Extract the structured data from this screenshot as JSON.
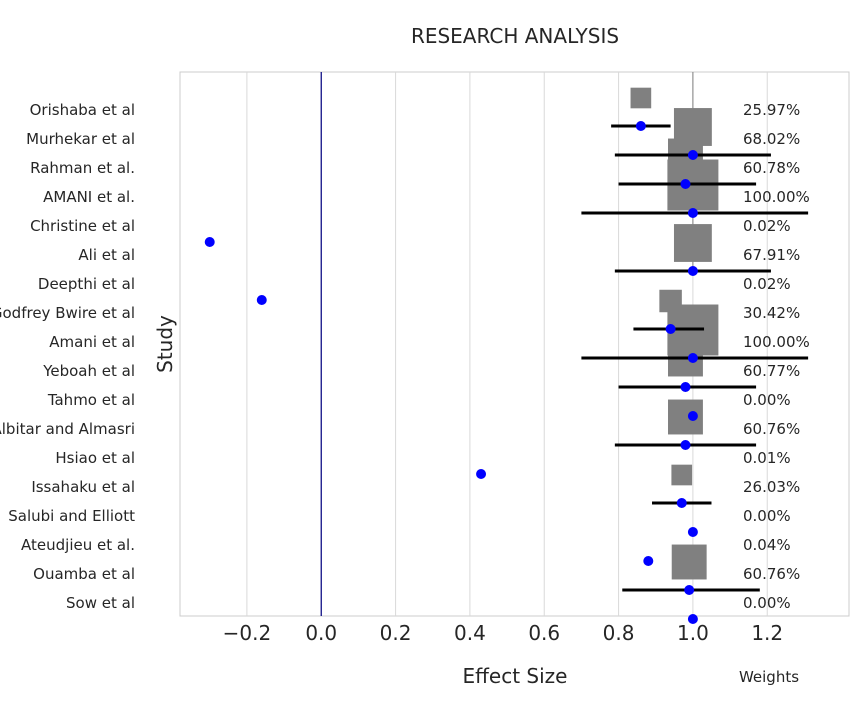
{
  "chart_data": {
    "type": "forest",
    "title": "RESEARCH ANALYSIS",
    "xlabel": "Effect Size",
    "ylabel": "Study",
    "weights_label": "Weights",
    "xlim": [
      -0.38,
      1.42
    ],
    "xticks": [
      -0.2,
      0.0,
      0.2,
      0.4,
      0.6,
      0.8,
      1.0,
      1.2
    ],
    "xtick_labels": [
      "−0.2",
      "0.0",
      "0.2",
      "0.4",
      "0.6",
      "0.8",
      "1.0",
      "1.2"
    ],
    "reference_lines": {
      "null": 0.0,
      "pooled": 1.0
    },
    "grid": "vertical",
    "colors": {
      "point": "#0000ff",
      "box": "#808080",
      "ci": "#000000",
      "null_line": "#000080",
      "pooled_line": "#808080",
      "grid": "#d9d9d9"
    },
    "studies": [
      {
        "name": "Orishaba et al",
        "effect": 0.86,
        "ci_low": 0.78,
        "ci_high": 0.94,
        "weight": 25.97,
        "weight_label": "25.97%"
      },
      {
        "name": "Murhekar et al",
        "effect": 1.0,
        "ci_low": 0.79,
        "ci_high": 1.21,
        "weight": 68.02,
        "weight_label": "68.02%"
      },
      {
        "name": "Rahman et al.",
        "effect": 0.98,
        "ci_low": 0.8,
        "ci_high": 1.17,
        "weight": 60.78,
        "weight_label": "60.78%"
      },
      {
        "name": "AMANI et al.",
        "effect": 1.0,
        "ci_low": 0.7,
        "ci_high": 1.31,
        "weight": 100.0,
        "weight_label": "100.00%"
      },
      {
        "name": "Christine et al",
        "effect": -0.3,
        "ci_low": null,
        "ci_high": null,
        "weight": 0.02,
        "weight_label": "0.02%"
      },
      {
        "name": "Ali et al",
        "effect": 1.0,
        "ci_low": 0.79,
        "ci_high": 1.21,
        "weight": 67.91,
        "weight_label": "67.91%"
      },
      {
        "name": "Deepthi et al",
        "effect": -0.16,
        "ci_low": null,
        "ci_high": null,
        "weight": 0.02,
        "weight_label": "0.02%"
      },
      {
        "name": "Godfrey Bwire et al",
        "effect": 0.94,
        "ci_low": 0.84,
        "ci_high": 1.03,
        "weight": 30.42,
        "weight_label": "30.42%"
      },
      {
        "name": "Amani et al",
        "effect": 1.0,
        "ci_low": 0.7,
        "ci_high": 1.31,
        "weight": 100.0,
        "weight_label": "100.00%"
      },
      {
        "name": "Yeboah et al",
        "effect": 0.98,
        "ci_low": 0.8,
        "ci_high": 1.17,
        "weight": 60.77,
        "weight_label": "60.77%"
      },
      {
        "name": "Tahmo et al",
        "effect": 1.0,
        "ci_low": null,
        "ci_high": null,
        "weight": 0.0,
        "weight_label": "0.00%"
      },
      {
        "name": "Albitar and Almasri",
        "effect": 0.98,
        "ci_low": 0.79,
        "ci_high": 1.17,
        "weight": 60.76,
        "weight_label": "60.76%"
      },
      {
        "name": "Hsiao et al",
        "effect": 0.43,
        "ci_low": null,
        "ci_high": null,
        "weight": 0.01,
        "weight_label": "0.01%"
      },
      {
        "name": "Issahaku et al",
        "effect": 0.97,
        "ci_low": 0.89,
        "ci_high": 1.05,
        "weight": 26.03,
        "weight_label": "26.03%"
      },
      {
        "name": "Salubi and Elliott",
        "effect": 1.0,
        "ci_low": null,
        "ci_high": null,
        "weight": 0.0,
        "weight_label": "0.00%"
      },
      {
        "name": "Ateudjieu et al.",
        "effect": 0.88,
        "ci_low": null,
        "ci_high": null,
        "weight": 0.04,
        "weight_label": "0.04%"
      },
      {
        "name": "Ouamba et al",
        "effect": 0.99,
        "ci_low": 0.81,
        "ci_high": 1.18,
        "weight": 60.76,
        "weight_label": "60.76%"
      },
      {
        "name": "Sow et al",
        "effect": 1.0,
        "ci_low": null,
        "ci_high": null,
        "weight": 0.0,
        "weight_label": "0.00%"
      }
    ]
  }
}
